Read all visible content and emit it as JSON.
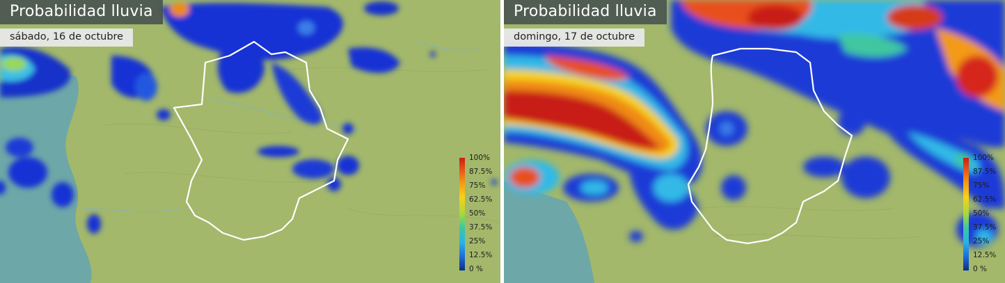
{
  "maps": [
    {
      "title": "Probabilidad lluvia",
      "date": "sábado, 16 de octubre"
    },
    {
      "title": "Probabilidad lluvia",
      "date": "domingo, 17 de octubre"
    }
  ],
  "legend": {
    "labels": [
      "100%",
      "87.5%",
      "75%",
      "62.5%",
      "50%",
      "37.5%",
      "25%",
      "12.5%",
      "0 %"
    ],
    "colors": [
      "#c81e12",
      "#e8501a",
      "#f39a12",
      "#f6d21c",
      "#a7d83a",
      "#3fc7a0",
      "#28b4e6",
      "#1e6fe0",
      "#0b2f86"
    ]
  },
  "colors": {
    "land": "#a3b86a",
    "sea": "#6ea7a8",
    "region_border": "#ffffff"
  }
}
